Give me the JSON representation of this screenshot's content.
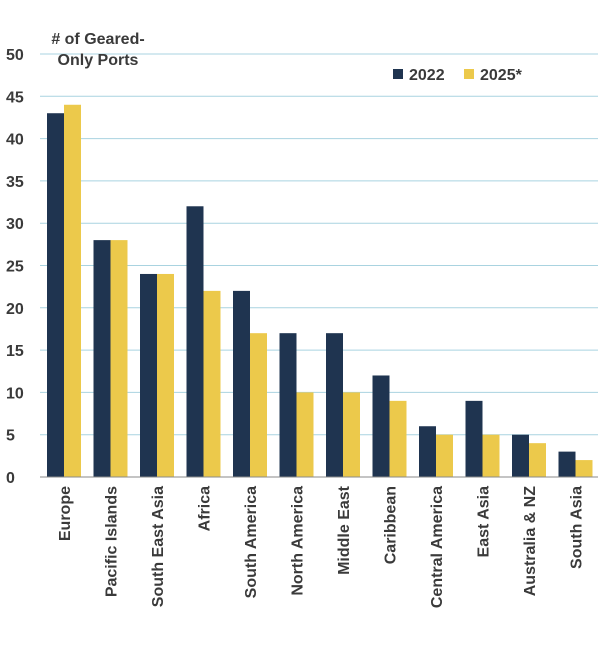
{
  "chart_data": {
    "type": "bar",
    "ylabel_lines": [
      "# of Geared-",
      "Only Ports"
    ],
    "categories": [
      "Europe",
      "Pacific Islands",
      "South East Asia",
      "Africa",
      "South America",
      "North America",
      "Middle East",
      "Caribbean",
      "Central America",
      "East Asia",
      "Australia & NZ",
      "South Asia"
    ],
    "series": [
      {
        "name": "2022",
        "color": "#1f3450",
        "values": [
          43,
          28,
          24,
          32,
          22,
          17,
          17,
          12,
          6,
          9,
          5,
          3
        ]
      },
      {
        "name": "2025*",
        "color": "#ecc94b",
        "values": [
          44,
          28,
          24,
          22,
          17,
          10,
          10,
          9,
          5,
          5,
          4,
          2
        ]
      }
    ],
    "ylim": [
      0,
      50
    ],
    "yticks": [
      0,
      5,
      10,
      15,
      20,
      25,
      30,
      35,
      40,
      45,
      50
    ],
    "grid": true,
    "legend_position": "top-right"
  }
}
